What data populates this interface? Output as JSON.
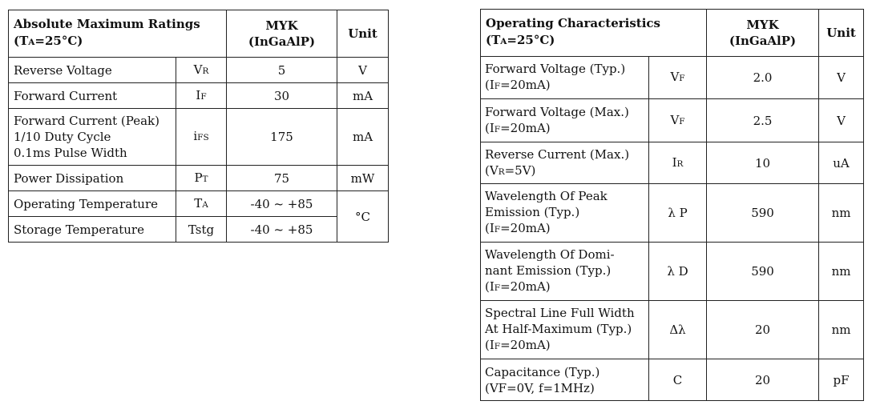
{
  "abs_table": {
    "title": "Absolute Maximum Ratings",
    "title_cond_pre": "(T",
    "title_cond_sub": "A",
    "title_cond_post": "=25°C)",
    "col_part_line1": "MYK",
    "col_part_line2": "(InGaAlP)",
    "col_unit": "Unit",
    "rows": [
      {
        "param": [
          "Reverse Voltage"
        ],
        "sym": "V",
        "sym_sub": "R",
        "value": "5",
        "unit": "V"
      },
      {
        "param": [
          "Forward Current"
        ],
        "sym": "I",
        "sym_sub": "F",
        "value": "30",
        "unit": "mA"
      },
      {
        "param": [
          "Forward Current (Peak)",
          "1/10 Duty Cycle",
          "0.1ms Pulse Width"
        ],
        "sym": "i",
        "sym_sub": "FS",
        "value": "175",
        "unit": "mA"
      },
      {
        "param": [
          "Power Dissipation"
        ],
        "sym": "P",
        "sym_sub": "T",
        "value": "75",
        "unit": "mW"
      },
      {
        "param": [
          "Operating Temperature"
        ],
        "sym": "T",
        "sym_sub": "A",
        "value": "-40 ~ +85",
        "unit": "°C"
      },
      {
        "param": [
          "Storage Temperature"
        ],
        "sym": "Tstg",
        "sym_sub": "",
        "value": "-40 ~ +85",
        "unit": ""
      }
    ]
  },
  "op_table": {
    "title": "Operating Characteristics",
    "title_cond_pre": "(T",
    "title_cond_sub": "A",
    "title_cond_post": "=25°C)",
    "col_part_line1": "MYK",
    "col_part_line2": "(InGaAlP)",
    "col_unit": "Unit",
    "rows": [
      {
        "param": [
          "Forward Voltage (Typ.)"
        ],
        "cond": [
          "(I",
          "F",
          "=20mA)"
        ],
        "sym": "V",
        "sym_sub": "F",
        "value": "2.0",
        "unit": "V"
      },
      {
        "param": [
          "Forward Voltage (Max.)"
        ],
        "cond": [
          "(I",
          "F",
          "=20mA)"
        ],
        "sym": "V",
        "sym_sub": "F",
        "value": "2.5",
        "unit": "V"
      },
      {
        "param": [
          "Reverse Current (Max.)"
        ],
        "cond": [
          "(V",
          "R",
          "=5V)"
        ],
        "sym": "I",
        "sym_sub": "R",
        "value": "10",
        "unit": "uA"
      },
      {
        "param": [
          "Wavelength Of Peak",
          "Emission (Typ.)"
        ],
        "cond": [
          "(I",
          "F",
          "=20mA)"
        ],
        "sym": "λ P",
        "sym_sub": "",
        "value": "590",
        "unit": "nm"
      },
      {
        "param": [
          "Wavelength Of Domi-",
          "nant Emission (Typ.)"
        ],
        "cond": [
          "(I",
          "F",
          "=20mA)"
        ],
        "sym": "λ D",
        "sym_sub": "",
        "value": "590",
        "unit": "nm"
      },
      {
        "param": [
          "Spectral Line Full Width",
          "At Half-Maximum (Typ.)"
        ],
        "cond": [
          "(I",
          "F",
          "=20mA)"
        ],
        "sym": "Δλ",
        "sym_sub": "",
        "value": "20",
        "unit": "nm"
      },
      {
        "param": [
          "Capacitance (Typ.)"
        ],
        "cond": [
          "(VF=0V, f=1MHz)",
          "",
          ""
        ],
        "sym": "C",
        "sym_sub": "",
        "value": "20",
        "unit": "pF"
      }
    ]
  }
}
